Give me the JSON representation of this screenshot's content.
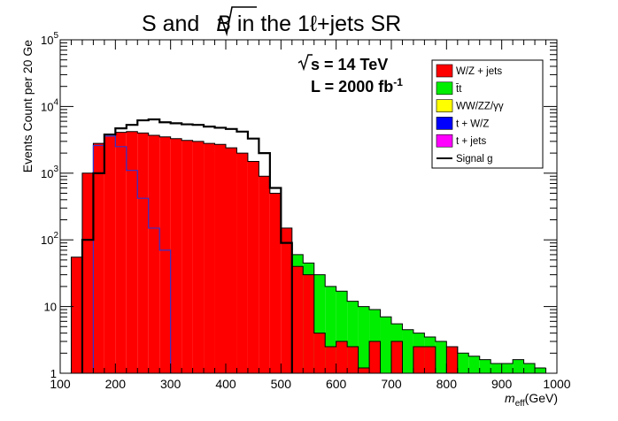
{
  "chart_data": {
    "type": "histogram",
    "title": "S and √B  in the 1ℓ+jets SR",
    "title_parts": {
      "pre": "S and ",
      "sqrt_arg": "B",
      "post": " in the 1ℓ+jets SR"
    },
    "energy_label": "√s = 14 TeV",
    "energy_parts": {
      "sqrt_arg": "s",
      "rest": " = 14 TeV"
    },
    "lumi_label": "L = 2000 fb⁻¹",
    "lumi_parts": {
      "main": "L = 2000 fb",
      "sup": "-1"
    },
    "xlabel": "m_eff(GeV)",
    "xlabel_parts": {
      "main": "m",
      "sub": "eff",
      "unit": "(GeV)"
    },
    "ylabel": "Events Count per 20 Ge",
    "xlim": [
      100,
      1000
    ],
    "ylim": [
      1,
      100000
    ],
    "yscale": "log",
    "bin_width": 20,
    "x_ticks": [
      "100",
      "200",
      "300",
      "400",
      "500",
      "600",
      "700",
      "800",
      "900",
      "1000"
    ],
    "y_ticks": [
      {
        "value": 1,
        "label": "1"
      },
      {
        "value": 10,
        "label": "10"
      },
      {
        "value": 100,
        "label": "10",
        "exp": "2"
      },
      {
        "value": 1000,
        "label": "10",
        "exp": "3"
      },
      {
        "value": 10000,
        "label": "10",
        "exp": "4"
      },
      {
        "value": 100000,
        "label": "10",
        "exp": "5"
      }
    ],
    "legend": [
      {
        "label": "W/Z + jets",
        "color": "#ff0000",
        "kind": "fill"
      },
      {
        "label": "t̄t",
        "color": "#00ee00",
        "kind": "fill"
      },
      {
        "label": "WW/ZZ/γγ",
        "color": "#ffff00",
        "kind": "fill"
      },
      {
        "label": "t + W/Z",
        "color": "#0000ff",
        "kind": "fill"
      },
      {
        "label": "t + jets",
        "color": "#ff00ff",
        "kind": "fill"
      },
      {
        "label": "Signal g",
        "color": "#000000",
        "kind": "line"
      }
    ],
    "series": {
      "ttbar_stack_top": {
        "bin_edges": [
          520,
          540,
          560,
          580,
          600,
          620,
          640,
          660,
          680,
          700,
          720,
          740,
          760,
          780,
          800,
          820,
          840,
          860,
          880,
          900,
          920,
          940,
          960,
          980
        ],
        "values": [
          60,
          45,
          30,
          20,
          17,
          12,
          10,
          9,
          7,
          5.5,
          4.5,
          4,
          3.5,
          3,
          2.5,
          2,
          1.8,
          1.6,
          1.4,
          1.4,
          1.6,
          1.4,
          1.2
        ]
      },
      "wz_jets": {
        "bin_edges": [
          120,
          140,
          160,
          180,
          200,
          220,
          240,
          260,
          280,
          300,
          320,
          340,
          360,
          380,
          400,
          420,
          440,
          460,
          480,
          500,
          520,
          540,
          560,
          580,
          600,
          620,
          640,
          660,
          680,
          700,
          720,
          740,
          760,
          780,
          800,
          820,
          840
        ],
        "values": [
          55,
          1000,
          2800,
          3600,
          4100,
          4200,
          4000,
          3700,
          3500,
          3300,
          3100,
          3000,
          2800,
          2700,
          2400,
          2000,
          1500,
          900,
          500,
          150,
          40,
          30,
          4,
          2.5,
          3,
          2.5,
          1.2,
          3,
          1,
          3,
          1,
          2.5,
          2.5,
          1,
          2.5,
          1
        ]
      },
      "t_wz": {
        "bin_edges": [
          160,
          180,
          200,
          220,
          240,
          260,
          280,
          300
        ],
        "values": [
          2600,
          3600,
          2500,
          1100,
          420,
          150,
          70
        ]
      },
      "signal": {
        "bin_edges": [
          140,
          160,
          180,
          200,
          220,
          240,
          260,
          280,
          300,
          320,
          340,
          360,
          380,
          400,
          420,
          440,
          460,
          480,
          500,
          520
        ],
        "values": [
          100,
          1000,
          3800,
          4700,
          5300,
          6200,
          6400,
          5800,
          5600,
          5400,
          5300,
          5000,
          4800,
          4600,
          4200,
          3300,
          2000,
          600,
          90
        ]
      }
    }
  }
}
